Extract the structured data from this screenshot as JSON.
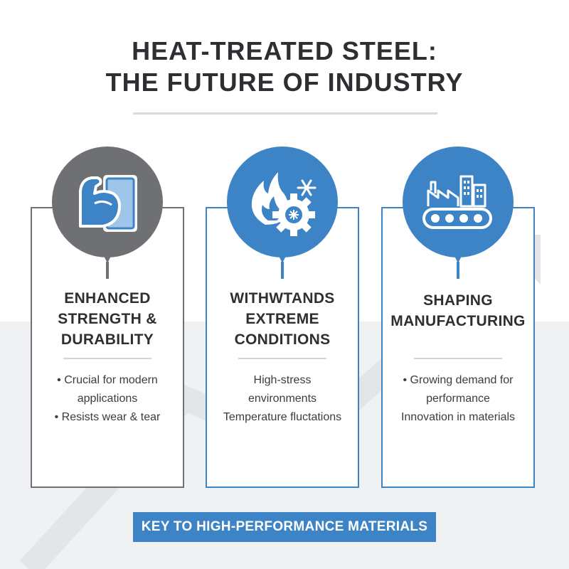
{
  "header": {
    "title_line1": "HEAT-TREATED STEEL:",
    "title_line2": "THE FUTURE OF INDUSTRY"
  },
  "cards": [
    {
      "icon": "flexed-arm-steel-plate-icon",
      "title_lines": [
        "ENHANCED",
        "STRENGTH &",
        "DURABILITY"
      ],
      "bullets": [
        "• Crucial for modern",
        "applications",
        "• Resists wear & tear"
      ]
    },
    {
      "icon": "fire-snowflake-gear-icon",
      "title_lines": [
        "WITHWTANDS",
        "EXTREME",
        "CONDITIONS"
      ],
      "bullets": [
        "High-stress",
        "environments",
        "Temperature fluctations"
      ]
    },
    {
      "icon": "factory-conveyor-icon",
      "title_lines": [
        "SHAPING",
        "MANUFACTURING"
      ],
      "bullets": [
        "• Growing demand for",
        "performance",
        "Innovation in materials"
      ]
    }
  ],
  "banner": {
    "label": "KEY TO HIGH-PERFORMANCE MATERIALS"
  },
  "colors": {
    "accent_blue": "#3d84c6",
    "accent_gray": "#6e7073",
    "text_dark": "#2d2f33"
  }
}
